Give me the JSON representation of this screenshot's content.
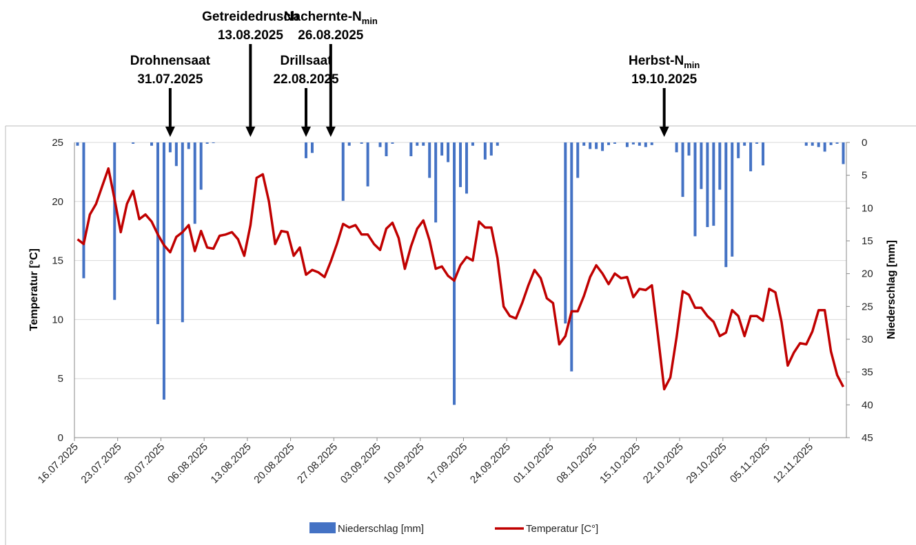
{
  "chart_data": {
    "type": "bar_line",
    "categories": [
      "16.07.2025",
      null,
      null,
      null,
      null,
      null,
      null,
      "23.07.2025",
      null,
      null,
      null,
      null,
      null,
      null,
      "30.07.2025",
      null,
      null,
      null,
      null,
      null,
      null,
      "06.08.2025",
      null,
      null,
      null,
      null,
      null,
      null,
      "13.08.2025",
      null,
      null,
      null,
      null,
      null,
      null,
      "20.08.2025",
      null,
      null,
      null,
      null,
      null,
      null,
      "27.08.2025",
      null,
      null,
      null,
      null,
      null,
      null,
      "03.09.2025",
      null,
      null,
      null,
      null,
      null,
      null,
      "10.09.2025",
      null,
      null,
      null,
      null,
      null,
      null,
      "17.09.2025",
      null,
      null,
      null,
      null,
      null,
      null,
      "24.09.2025",
      null,
      null,
      null,
      null,
      null,
      null,
      "01.10.2025",
      null,
      null,
      null,
      null,
      null,
      null,
      "08.10.2025",
      null,
      null,
      null,
      null,
      null,
      null,
      "15.10.2025",
      null,
      null,
      null,
      null,
      null,
      null,
      "22.10.2025",
      null,
      null,
      null,
      null,
      null,
      null,
      "29.10.2025",
      null,
      null,
      null,
      null,
      null,
      null,
      "05.11.2025",
      null,
      null,
      null,
      null,
      null,
      null,
      "12.11.2025",
      null,
      null,
      null,
      null,
      null
    ],
    "series": [
      {
        "name": "Niederschlag [mm]",
        "type": "bar",
        "axis": "y2",
        "color": "#4472c4",
        "values": [
          0.5,
          20.7,
          0,
          0,
          0,
          0,
          24.0,
          0,
          0,
          0.2,
          0,
          0,
          0.5,
          27.7,
          39.2,
          1.5,
          3.6,
          27.4,
          1.0,
          12.4,
          7.2,
          0.2,
          0.1,
          0,
          0,
          0,
          0,
          0,
          0,
          0,
          0,
          0,
          0,
          0,
          0,
          0,
          0,
          2.4,
          1.6,
          0,
          0,
          0,
          0,
          8.9,
          0.5,
          0,
          0.2,
          6.7,
          0,
          0.7,
          2.1,
          0.2,
          0,
          0,
          2.1,
          0.5,
          0.5,
          5.4,
          12.2,
          2.0,
          3.0,
          40.0,
          6.8,
          7.8,
          0.5,
          0,
          2.6,
          2.0,
          0.5,
          0,
          0,
          0,
          0,
          0,
          0,
          0,
          0,
          0,
          0,
          27.6,
          34.9,
          5.4,
          0.5,
          1.0,
          1.0,
          1.3,
          0.4,
          0.2,
          0,
          0.7,
          0.3,
          0.5,
          0.7,
          0.4,
          0,
          0,
          0,
          1.5,
          8.3,
          2.0,
          14.3,
          7.1,
          12.9,
          12.7,
          7.2,
          19.0,
          17.4,
          2.4,
          0.5,
          4.4,
          0.2,
          3.5,
          0,
          0,
          0,
          0,
          0,
          0,
          0.5,
          0.5,
          0.7,
          1.4,
          0.4,
          0.2,
          3.3
        ]
      },
      {
        "name": "Temperatur [C°]",
        "type": "line",
        "color": "#c00000",
        "values": [
          16.8,
          16.4,
          18.9,
          19.8,
          21.3,
          22.8,
          20.2,
          17.4,
          19.8,
          20.9,
          18.5,
          18.9,
          18.3,
          17.2,
          16.3,
          15.7,
          17.0,
          17.4,
          18.0,
          15.8,
          17.5,
          16.1,
          16.0,
          17.1,
          17.2,
          17.4,
          16.8,
          15.4,
          18.0,
          22.0,
          22.3,
          20.0,
          16.4,
          17.5,
          17.4,
          15.4,
          16.1,
          13.8,
          14.2,
          14.0,
          13.6,
          14.9,
          16.4,
          18.1,
          17.8,
          18.0,
          17.2,
          17.2,
          16.4,
          15.9,
          17.7,
          18.2,
          16.9,
          14.3,
          16.2,
          17.7,
          18.4,
          16.7,
          14.3,
          14.5,
          13.7,
          13.3,
          14.6,
          15.3,
          15.0,
          18.3,
          17.8,
          17.8,
          15.2,
          11.1,
          10.3,
          10.1,
          11.4,
          12.9,
          14.2,
          13.5,
          11.8,
          11.4,
          7.9,
          8.6,
          10.7,
          10.7,
          12.0,
          13.6,
          14.6,
          13.9,
          13.0,
          13.9,
          13.5,
          13.6,
          11.9,
          12.6,
          12.5,
          12.9,
          8.6,
          4.1,
          5.1,
          8.5,
          12.4,
          12.1,
          11.0,
          11.0,
          10.3,
          9.8,
          8.6,
          8.9,
          10.8,
          10.3,
          8.6,
          10.3,
          10.3,
          9.9,
          12.6,
          12.3,
          9.8,
          6.1,
          7.2,
          8.0,
          7.9,
          9.0,
          10.8,
          10.8,
          7.3,
          5.3,
          4.3
        ]
      }
    ],
    "ylim": [
      0,
      25
    ],
    "yticks": [
      0,
      5,
      10,
      15,
      20,
      25
    ],
    "y2lim": [
      0,
      45
    ],
    "y2ticks": [
      0,
      5,
      10,
      15,
      20,
      25,
      30,
      35,
      40,
      45
    ],
    "y2_inverted": true,
    "ylabel": "Temperatur [°C]",
    "y2label": "Niederschlag [mm]",
    "grid": true,
    "legend": "bottom",
    "annotations": [
      {
        "label": "Drohnensaat",
        "date": "31.07.2025"
      },
      {
        "label": "Getreidedrusch",
        "date": "13.08.2025"
      },
      {
        "label": "Drillsaat",
        "date": "22.08.2025"
      },
      {
        "label": "Nachernte-N",
        "subscript": "min",
        "date": "26.08.2025"
      },
      {
        "label": "Herbst-N",
        "subscript": "min",
        "date": "19.10.2025"
      }
    ]
  }
}
